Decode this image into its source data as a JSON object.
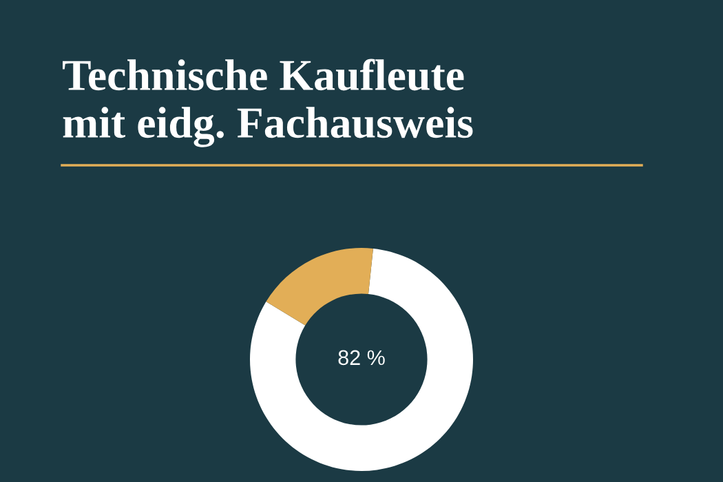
{
  "chart_data": {
    "type": "donut",
    "title": "Technische Kaufleute\nmit eidg. Fachausweis",
    "categories": [
      null,
      null
    ],
    "values": [
      82,
      18
    ],
    "colors": [
      "#ffffff",
      "#e2ae57"
    ],
    "value_labels": [
      "82 %",
      null
    ]
  }
}
